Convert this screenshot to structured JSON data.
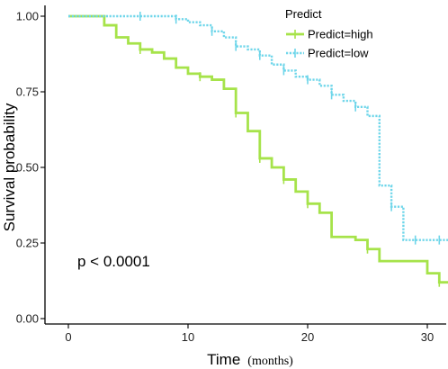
{
  "chart_data": {
    "type": "line",
    "subtype": "kaplan-meier",
    "xlabel": "Time",
    "xlabel_unit": "(months)",
    "ylabel": "Survival probability",
    "xlim": [
      -2,
      32
    ],
    "ylim": [
      0,
      1.05
    ],
    "xticks": [
      0,
      10,
      20,
      30
    ],
    "yticks": [
      0.0,
      0.25,
      0.5,
      0.75,
      1.0
    ],
    "ytick_labels": [
      "0.00",
      "0.25",
      "0.50",
      "0.75",
      "1.00"
    ],
    "grid": false,
    "legend": {
      "title": "Predict",
      "placement": "top-right"
    },
    "annotation": "p < 0.0001",
    "series": [
      {
        "name": "Predict=high",
        "color": "#a6e34a",
        "style": "solid",
        "steps": [
          [
            0,
            1.0
          ],
          [
            3,
            0.97
          ],
          [
            4,
            0.93
          ],
          [
            5,
            0.91
          ],
          [
            6,
            0.89
          ],
          [
            7,
            0.88
          ],
          [
            8,
            0.86
          ],
          [
            9,
            0.83
          ],
          [
            10,
            0.81
          ],
          [
            11,
            0.8
          ],
          [
            12,
            0.79
          ],
          [
            13,
            0.76
          ],
          [
            14,
            0.68
          ],
          [
            15,
            0.62
          ],
          [
            16,
            0.53
          ],
          [
            17,
            0.5
          ],
          [
            18,
            0.46
          ],
          [
            19,
            0.42
          ],
          [
            20,
            0.38
          ],
          [
            21,
            0.35
          ],
          [
            22,
            0.27
          ],
          [
            24,
            0.26
          ],
          [
            25,
            0.23
          ],
          [
            26,
            0.19
          ],
          [
            30,
            0.15
          ],
          [
            31,
            0.12
          ],
          [
            32,
            0.12
          ]
        ],
        "censor": [
          [
            6,
            0.89
          ],
          [
            11,
            0.8
          ],
          [
            14,
            0.68
          ],
          [
            16,
            0.53
          ],
          [
            18,
            0.46
          ],
          [
            20,
            0.38
          ],
          [
            25,
            0.23
          ],
          [
            31,
            0.12
          ]
        ]
      },
      {
        "name": "Predict=low",
        "color": "#6fd6ea",
        "style": "dotted",
        "steps": [
          [
            0,
            1.0
          ],
          [
            9,
            0.99
          ],
          [
            10,
            0.98
          ],
          [
            11,
            0.97
          ],
          [
            12,
            0.95
          ],
          [
            13,
            0.93
          ],
          [
            14,
            0.9
          ],
          [
            15,
            0.89
          ],
          [
            16,
            0.87
          ],
          [
            17,
            0.84
          ],
          [
            18,
            0.82
          ],
          [
            19,
            0.8
          ],
          [
            20,
            0.79
          ],
          [
            21,
            0.77
          ],
          [
            22,
            0.74
          ],
          [
            23,
            0.72
          ],
          [
            24,
            0.7
          ],
          [
            25,
            0.67
          ],
          [
            26,
            0.44
          ],
          [
            27,
            0.37
          ],
          [
            28,
            0.26
          ],
          [
            32,
            0.26
          ]
        ],
        "censor": [
          [
            6,
            1.0
          ],
          [
            9,
            0.99
          ],
          [
            12,
            0.95
          ],
          [
            14,
            0.9
          ],
          [
            16,
            0.87
          ],
          [
            18,
            0.82
          ],
          [
            20,
            0.79
          ],
          [
            22,
            0.74
          ],
          [
            24,
            0.7
          ],
          [
            27,
            0.37
          ],
          [
            29,
            0.26
          ],
          [
            31,
            0.26
          ]
        ]
      }
    ]
  }
}
